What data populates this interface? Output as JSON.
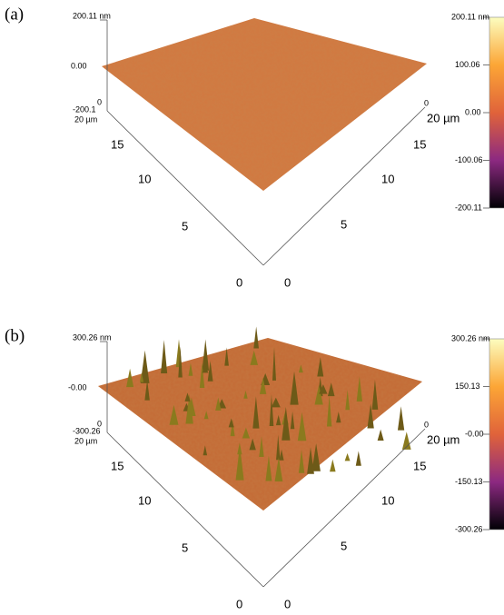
{
  "panels": [
    {
      "label": "(a)",
      "z_axis": {
        "max": "200.11 nm",
        "zero": "0.00",
        "min": "-200.1",
        "zero_tick": "0"
      },
      "left_axis": {
        "unit": "20 µm",
        "ticks": [
          "15",
          "10",
          "5",
          "0"
        ]
      },
      "right_axis": {
        "zero": "0",
        "unit": "20 µm",
        "ticks": [
          "15",
          "10",
          "5",
          "0"
        ]
      },
      "colorbar": {
        "ticks": [
          "200.11 nm",
          "100.06",
          "0.00",
          "-100.06",
          "-200.11"
        ]
      }
    },
    {
      "label": "(b)",
      "z_axis": {
        "max": "300.26 nm",
        "zero": "-0.00",
        "min": "-300.26",
        "zero_tick": "0"
      },
      "left_axis": {
        "unit": "20 µm",
        "ticks": [
          "15",
          "10",
          "5",
          "0"
        ]
      },
      "right_axis": {
        "zero": "0",
        "unit": "20 µm",
        "ticks": [
          "15",
          "10",
          "5",
          "0"
        ]
      },
      "colorbar": {
        "ticks": [
          "300.26 nm",
          "150.13",
          "-0.00",
          "-150.13",
          "-300.26"
        ]
      }
    }
  ]
}
